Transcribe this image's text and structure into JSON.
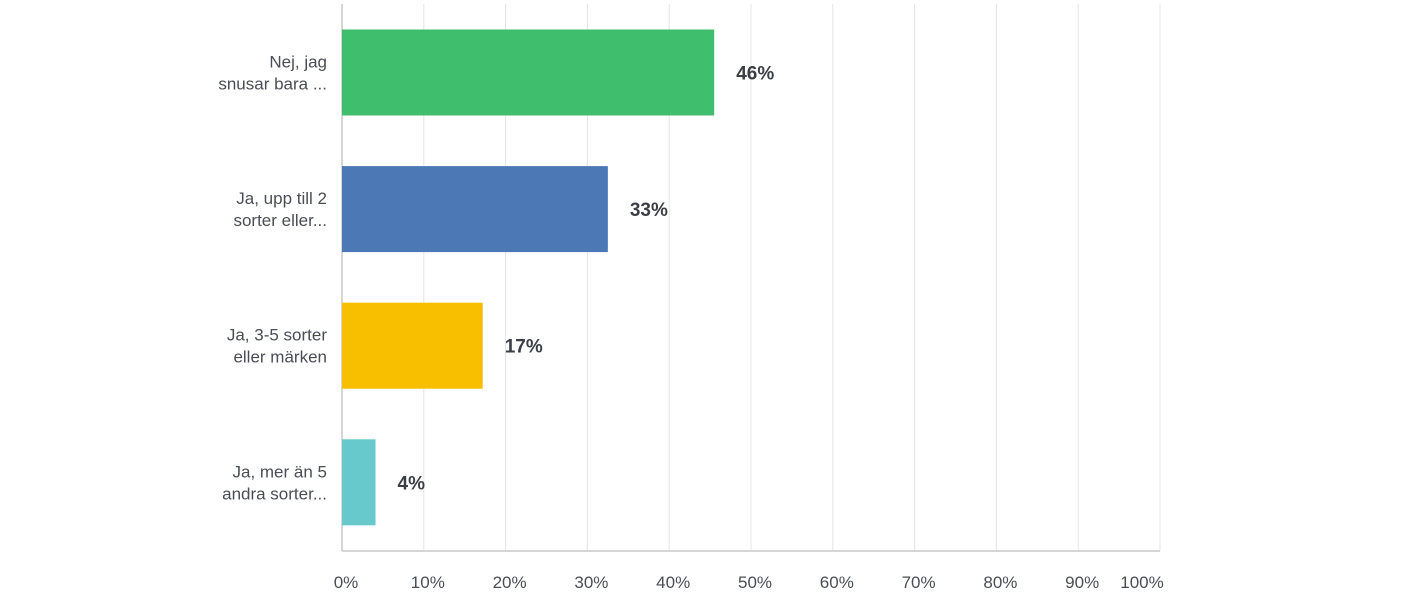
{
  "chart_data": {
    "type": "bar",
    "orientation": "horizontal",
    "title": "",
    "xlabel": "",
    "ylabel": "",
    "categories": [
      [
        "Nej, jag",
        "snusar bara ..."
      ],
      [
        "Ja, upp till 2",
        "sorter eller..."
      ],
      [
        "Ja, 3-5 sorter",
        "eller märken"
      ],
      [
        "Ja, mer än 5",
        "andra sorter..."
      ]
    ],
    "values": [
      45.5,
      32.5,
      17.2,
      4.1
    ],
    "value_labels": [
      "46%",
      "33%",
      "17%",
      "4%"
    ],
    "colors": [
      "#3fbf6e",
      "#4c78b5",
      "#f8bf00",
      "#67c9cc"
    ],
    "xlim": [
      0,
      100
    ],
    "ticks": [
      0,
      10,
      20,
      30,
      40,
      50,
      60,
      70,
      80,
      90,
      100
    ],
    "tick_labels": [
      "0%",
      "10%",
      "20%",
      "30%",
      "40%",
      "50%",
      "60%",
      "70%",
      "80%",
      "90%",
      "100%"
    ],
    "grid": true,
    "legend": "none"
  }
}
